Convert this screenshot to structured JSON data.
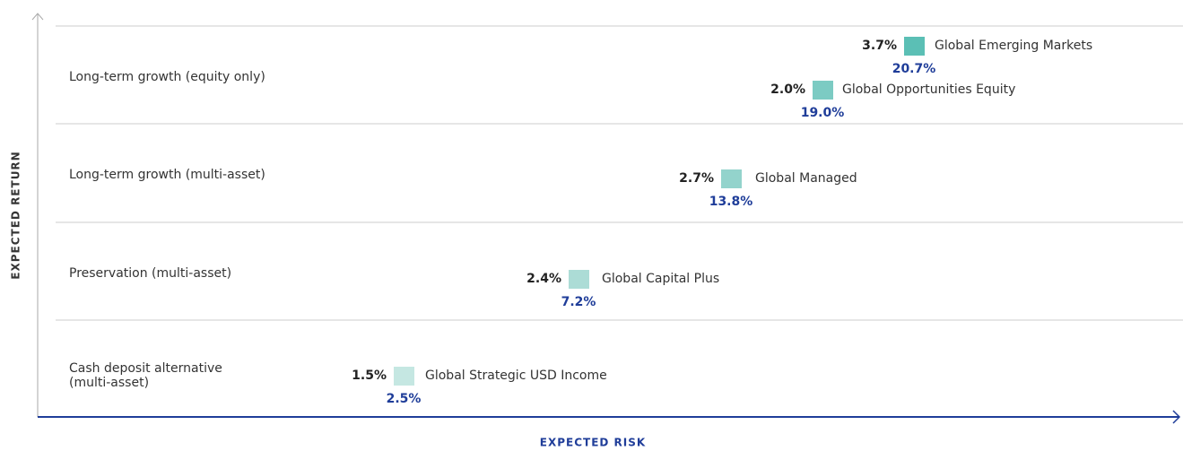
{
  "axes": {
    "y_label": "EXPECTED RETURN",
    "x_label": "EXPECTED RISK"
  },
  "bands": [
    {
      "label": [
        "Long-term growth (equity only)"
      ]
    },
    {
      "label": [
        "Long-term growth (multi-asset)"
      ]
    },
    {
      "label": [
        "Preservation (multi-asset)"
      ]
    },
    {
      "label": [
        "Cash deposit alternative",
        "(multi-asset)"
      ]
    }
  ],
  "funds": [
    {
      "name": "Global Emerging Markets",
      "return": "3.7%",
      "risk": "20.7%",
      "color": "#5bbfb5"
    },
    {
      "name": "Global Opportunities Equity",
      "return": "2.0%",
      "risk": "19.0%",
      "color": "#7ccbc3"
    },
    {
      "name": "Global Managed",
      "return": "2.7%",
      "risk": "13.8%",
      "color": "#93d3cc"
    },
    {
      "name": "Global Capital Plus",
      "return": "2.4%",
      "risk": "7.2%",
      "color": "#acdcd6"
    },
    {
      "name": "Global Strategic USD Income",
      "return": "1.5%",
      "risk": "2.5%",
      "color": "#c5e7e2"
    }
  ]
}
